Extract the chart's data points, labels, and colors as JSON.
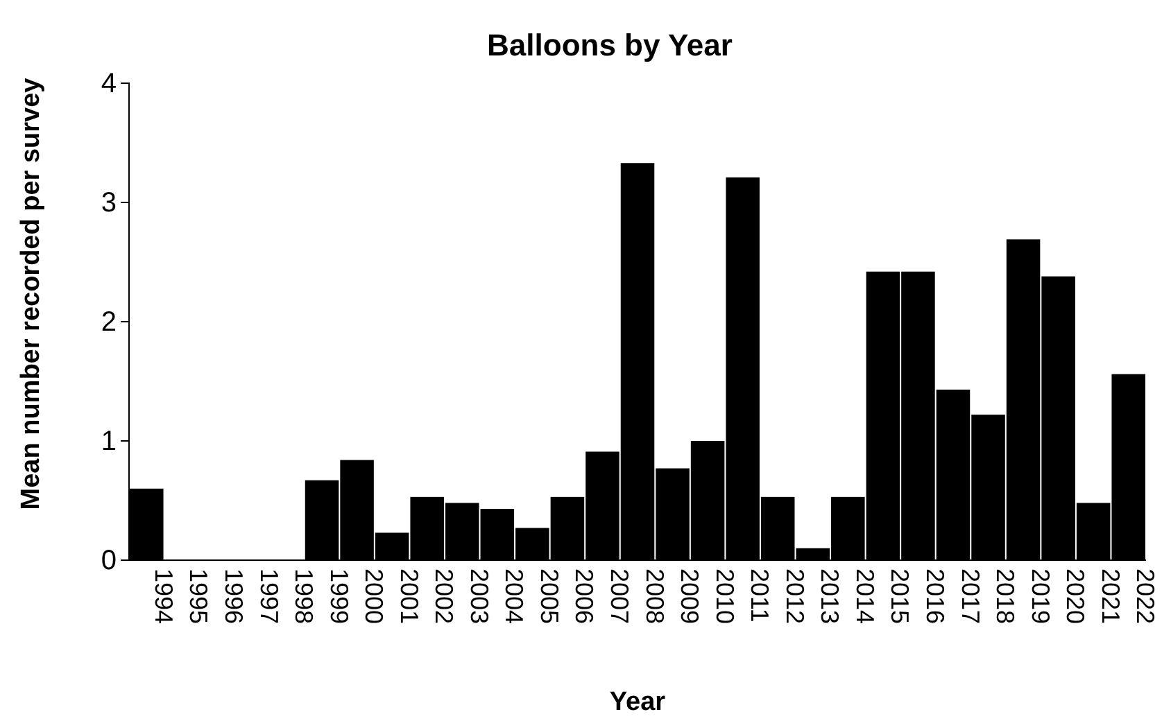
{
  "chart_data": {
    "type": "bar",
    "title": "Balloons by Year",
    "xlabel": "Year",
    "ylabel": "Mean number recorded per survey",
    "categories": [
      "1994",
      "1995",
      "1996",
      "1997",
      "1998",
      "1999",
      "2000",
      "2001",
      "2002",
      "2003",
      "2004",
      "2005",
      "2006",
      "2007",
      "2008",
      "2009",
      "2010",
      "2011",
      "2012",
      "2013",
      "2014",
      "2015",
      "2016",
      "2017",
      "2018",
      "2019",
      "2020",
      "2021",
      "2022"
    ],
    "values": [
      0.6,
      0,
      0,
      0,
      0,
      0.67,
      0.84,
      0.23,
      0.53,
      0.48,
      0.43,
      0.27,
      0.53,
      0.91,
      3.33,
      0.77,
      1.0,
      3.21,
      0.53,
      0.1,
      0.53,
      2.42,
      2.42,
      1.43,
      1.22,
      2.69,
      2.38,
      0.48,
      1.56
    ],
    "color": "#000000",
    "ylim": [
      0,
      4
    ],
    "yticks": [
      0,
      1,
      2,
      3,
      4
    ],
    "grid": false
  }
}
